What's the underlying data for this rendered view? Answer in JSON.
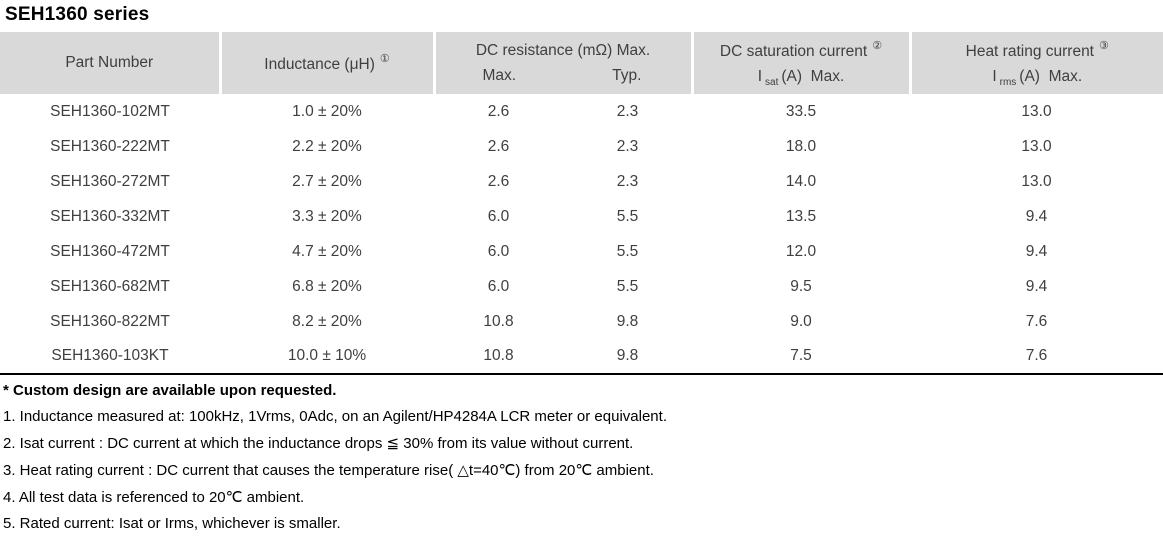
{
  "title": "SEH1360 series",
  "table": {
    "header": {
      "part_number": "Part Number",
      "inductance": {
        "label": "Inductance (μH)",
        "sup": "①"
      },
      "dc_resistance": {
        "label": "DC resistance (mΩ) Max.",
        "sub_max": "Max.",
        "sub_typ": "Typ."
      },
      "dc_saturation": {
        "label": "DC saturation current",
        "sup": "②",
        "symbol": "I",
        "symbol_sub": "sat",
        "unit": "(A)  Max."
      },
      "heat_rating": {
        "label": "Heat rating current",
        "sup": "③",
        "symbol": "I",
        "symbol_sub": "rms",
        "unit": "(A)  Max."
      }
    },
    "rows": [
      {
        "part": "SEH1360-102MT",
        "inductance": "1.0 ± 20%",
        "r_max": "2.6",
        "r_typ": "2.3",
        "isat": "33.5",
        "irms": "13.0"
      },
      {
        "part": "SEH1360-222MT",
        "inductance": "2.2 ± 20%",
        "r_max": "2.6",
        "r_typ": "2.3",
        "isat": "18.0",
        "irms": "13.0"
      },
      {
        "part": "SEH1360-272MT",
        "inductance": "2.7 ± 20%",
        "r_max": "2.6",
        "r_typ": "2.3",
        "isat": "14.0",
        "irms": "13.0"
      },
      {
        "part": "SEH1360-332MT",
        "inductance": "3.3 ± 20%",
        "r_max": "6.0",
        "r_typ": "5.5",
        "isat": "13.5",
        "irms": "9.4"
      },
      {
        "part": "SEH1360-472MT",
        "inductance": "4.7 ± 20%",
        "r_max": "6.0",
        "r_typ": "5.5",
        "isat": "12.0",
        "irms": "9.4"
      },
      {
        "part": "SEH1360-682MT",
        "inductance": "6.8 ± 20%",
        "r_max": "6.0",
        "r_typ": "5.5",
        "isat": "9.5",
        "irms": "9.4"
      },
      {
        "part": "SEH1360-822MT",
        "inductance": "8.2 ± 20%",
        "r_max": "10.8",
        "r_typ": "9.8",
        "isat": "9.0",
        "irms": "7.6"
      },
      {
        "part": "SEH1360-103KT",
        "inductance": "10.0 ± 10%",
        "r_max": "10.8",
        "r_typ": "9.8",
        "isat": "7.5",
        "irms": "7.6"
      }
    ]
  },
  "notes": {
    "custom_design": "* Custom design are available upon requested.",
    "items": [
      "1. Inductance measured at: 100kHz, 1Vrms, 0Adc, on an Agilent/HP4284A LCR meter or equivalent.",
      "2. Isat current : DC current at which the inductance drops ≦ 30% from its value without current.",
      "3. Heat rating current : DC current that causes the temperature rise( △t=40℃) from 20℃ ambient.",
      "4. All test data is referenced to 20℃ ambient.",
      "5. Rated current: Isat or Irms, whichever is smaller."
    ]
  },
  "colors": {
    "header_bg": "#d9d9d9",
    "header_text": "#3f3f3f",
    "body_text": "#3f3f3f",
    "divider": "#ffffff",
    "bottom_rule": "#000000"
  }
}
